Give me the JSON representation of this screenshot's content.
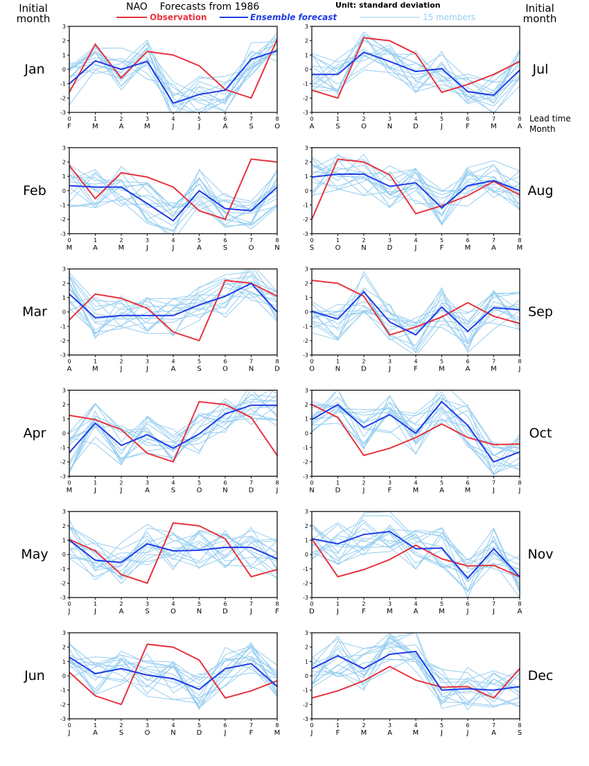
{
  "header": {
    "title": "NAO    Forecasts from 1986",
    "unit": "Unit: standard deviation",
    "left_label": [
      "Initial",
      "month"
    ],
    "right_label": [
      "Initial",
      "month"
    ],
    "lead_time_label": "Lead time",
    "month_label": "Month"
  },
  "legend": [
    {
      "name": "Observation",
      "color": "#e8323c"
    },
    {
      "name": "Ensemble forecast",
      "color": "#1e3ce6"
    },
    {
      "name": "15 members",
      "color": "#96cdf0"
    }
  ],
  "colors": {
    "observation": "#e8323c",
    "ensemble": "#1e3ce6",
    "members": "#96cdf0"
  },
  "chart_data": [
    {
      "type": "line",
      "initial_month": "Jan",
      "x": [
        0,
        1,
        2,
        3,
        4,
        5,
        6,
        7,
        8
      ],
      "month_ticks": [
        "F",
        "M",
        "A",
        "M",
        "J",
        "J",
        "A",
        "S",
        "O"
      ],
      "ylim": [
        -3,
        3
      ],
      "yticks": [
        -3,
        -2,
        -1,
        0,
        1,
        2,
        3
      ],
      "series": [
        {
          "name": "Observation",
          "values": [
            -1.6,
            1.75,
            -0.6,
            1.25,
            1.0,
            0.25,
            -1.4,
            -2.0,
            2.1
          ]
        },
        {
          "name": "Ensemble forecast",
          "values": [
            -1.0,
            0.6,
            0.0,
            0.55,
            -2.35,
            -1.75,
            -1.45,
            0.7,
            1.3
          ]
        }
      ]
    },
    {
      "type": "line",
      "initial_month": "Jul",
      "x": [
        0,
        1,
        2,
        3,
        4,
        5,
        6,
        7,
        8
      ],
      "month_ticks": [
        "A",
        "S",
        "O",
        "N",
        "D",
        "J",
        "F",
        "M",
        "A"
      ],
      "ylim": [
        -3,
        3
      ],
      "yticks": [
        -3,
        -2,
        -1,
        0,
        1,
        2,
        3
      ],
      "series": [
        {
          "name": "Observation",
          "values": [
            -1.45,
            -2.0,
            2.2,
            2.0,
            1.1,
            -1.6,
            -1.05,
            -0.35,
            0.55
          ]
        },
        {
          "name": "Ensemble forecast",
          "values": [
            -0.35,
            -0.35,
            1.2,
            0.55,
            -0.15,
            0.05,
            -1.55,
            -1.8,
            -0.05
          ]
        }
      ]
    },
    {
      "type": "line",
      "initial_month": "Feb",
      "x": [
        0,
        1,
        2,
        3,
        4,
        5,
        6,
        7,
        8
      ],
      "month_ticks": [
        "M",
        "A",
        "M",
        "J",
        "J",
        "A",
        "S",
        "O",
        "N"
      ],
      "ylim": [
        -3,
        3
      ],
      "yticks": [
        -3,
        -2,
        -1,
        0,
        1,
        2,
        3
      ],
      "series": [
        {
          "name": "Observation",
          "values": [
            1.75,
            -0.55,
            1.25,
            0.95,
            0.25,
            -1.4,
            -2.0,
            2.2,
            2.0
          ]
        },
        {
          "name": "Ensemble forecast",
          "values": [
            0.35,
            0.25,
            0.25,
            -0.9,
            -2.1,
            0.0,
            -1.25,
            -1.4,
            0.25
          ]
        }
      ]
    },
    {
      "type": "line",
      "initial_month": "Aug",
      "x": [
        0,
        1,
        2,
        3,
        4,
        5,
        6,
        7,
        8
      ],
      "month_ticks": [
        "S",
        "O",
        "N",
        "D",
        "J",
        "F",
        "M",
        "A",
        "M"
      ],
      "ylim": [
        -3,
        3
      ],
      "yticks": [
        -3,
        -2,
        -1,
        0,
        1,
        2,
        3
      ],
      "series": [
        {
          "name": "Observation",
          "values": [
            -2.0,
            2.2,
            2.0,
            1.1,
            -1.6,
            -1.05,
            -0.35,
            0.65,
            -0.3
          ]
        },
        {
          "name": "Ensemble forecast",
          "values": [
            0.95,
            1.15,
            1.15,
            0.3,
            0.55,
            -1.2,
            0.35,
            0.7,
            0.0
          ]
        }
      ]
    },
    {
      "type": "line",
      "initial_month": "Mar",
      "x": [
        0,
        1,
        2,
        3,
        4,
        5,
        6,
        7,
        8
      ],
      "month_ticks": [
        "A",
        "M",
        "J",
        "J",
        "A",
        "S",
        "O",
        "N",
        "D"
      ],
      "ylim": [
        -3,
        3
      ],
      "yticks": [
        -3,
        -2,
        -1,
        0,
        1,
        2,
        3
      ],
      "series": [
        {
          "name": "Observation",
          "values": [
            -0.55,
            1.25,
            0.95,
            0.25,
            -1.4,
            -2.0,
            2.2,
            2.0,
            1.1
          ]
        },
        {
          "name": "Ensemble forecast",
          "values": [
            1.25,
            -0.4,
            -0.25,
            -0.25,
            -0.25,
            0.5,
            1.1,
            2.0,
            0.0
          ]
        }
      ]
    },
    {
      "type": "line",
      "initial_month": "Sep",
      "x": [
        0,
        1,
        2,
        3,
        4,
        5,
        6,
        7,
        8
      ],
      "month_ticks": [
        "O",
        "N",
        "D",
        "J",
        "F",
        "M",
        "A",
        "M",
        "J"
      ],
      "ylim": [
        -3,
        3
      ],
      "yticks": [
        -3,
        -2,
        -1,
        0,
        1,
        2,
        3
      ],
      "series": [
        {
          "name": "Observation",
          "values": [
            2.2,
            2.0,
            1.1,
            -1.6,
            -1.05,
            -0.35,
            0.65,
            -0.3,
            -0.8
          ]
        },
        {
          "name": "Ensemble forecast",
          "values": [
            0.05,
            -0.5,
            1.4,
            -0.7,
            -1.6,
            0.35,
            -1.35,
            0.3,
            0.15
          ]
        }
      ]
    },
    {
      "type": "line",
      "initial_month": "Apr",
      "x": [
        0,
        1,
        2,
        3,
        4,
        5,
        6,
        7,
        8
      ],
      "month_ticks": [
        "M",
        "J",
        "J",
        "A",
        "S",
        "O",
        "N",
        "D",
        "J"
      ],
      "ylim": [
        -3,
        3
      ],
      "yticks": [
        -3,
        -2,
        -1,
        0,
        1,
        2,
        3
      ],
      "series": [
        {
          "name": "Observation",
          "values": [
            1.25,
            0.95,
            0.25,
            -1.4,
            -2.0,
            2.2,
            2.0,
            1.1,
            -1.55
          ]
        },
        {
          "name": "Ensemble forecast",
          "values": [
            -1.35,
            0.7,
            -0.85,
            -0.1,
            -1.05,
            -0.05,
            1.35,
            1.95,
            1.95
          ]
        }
      ]
    },
    {
      "type": "line",
      "initial_month": "Oct",
      "x": [
        0,
        1,
        2,
        3,
        4,
        5,
        6,
        7,
        8
      ],
      "month_ticks": [
        "N",
        "D",
        "J",
        "F",
        "M",
        "A",
        "M",
        "J",
        "J"
      ],
      "ylim": [
        -3,
        3
      ],
      "yticks": [
        -3,
        -2,
        -1,
        0,
        1,
        2,
        3
      ],
      "series": [
        {
          "name": "Observation",
          "values": [
            2.0,
            1.1,
            -1.55,
            -1.05,
            -0.3,
            0.65,
            -0.3,
            -0.8,
            -0.75
          ]
        },
        {
          "name": "Ensemble forecast",
          "values": [
            0.95,
            2.0,
            0.4,
            1.3,
            0.0,
            2.2,
            0.55,
            -2.0,
            -1.3
          ]
        }
      ]
    },
    {
      "type": "line",
      "initial_month": "May",
      "x": [
        0,
        1,
        2,
        3,
        4,
        5,
        6,
        7,
        8
      ],
      "month_ticks": [
        "J",
        "J",
        "A",
        "S",
        "O",
        "N",
        "D",
        "J",
        "F"
      ],
      "ylim": [
        -3,
        3
      ],
      "yticks": [
        -3,
        -2,
        -1,
        0,
        1,
        2,
        3
      ],
      "series": [
        {
          "name": "Observation",
          "values": [
            1.05,
            0.25,
            -1.4,
            -2.0,
            2.2,
            2.0,
            1.1,
            -1.55,
            -1.05
          ]
        },
        {
          "name": "Ensemble forecast",
          "values": [
            1.0,
            -0.4,
            -0.55,
            0.75,
            0.25,
            0.3,
            0.5,
            0.5,
            -0.3
          ]
        }
      ]
    },
    {
      "type": "line",
      "initial_month": "Nov",
      "x": [
        0,
        1,
        2,
        3,
        4,
        5,
        6,
        7,
        8
      ],
      "month_ticks": [
        "D",
        "J",
        "F",
        "M",
        "A",
        "M",
        "J",
        "J",
        "A"
      ],
      "ylim": [
        -3,
        3
      ],
      "yticks": [
        -3,
        -2,
        -1,
        0,
        1,
        2,
        3
      ],
      "series": [
        {
          "name": "Observation",
          "values": [
            1.1,
            -1.55,
            -1.05,
            -0.35,
            0.65,
            -0.3,
            -0.8,
            -0.75,
            -1.55
          ]
        },
        {
          "name": "Ensemble forecast",
          "values": [
            1.1,
            0.75,
            1.4,
            1.6,
            0.4,
            0.45,
            -1.65,
            0.4,
            -1.55
          ]
        }
      ]
    },
    {
      "type": "line",
      "initial_month": "Jun",
      "x": [
        0,
        1,
        2,
        3,
        4,
        5,
        6,
        7,
        8
      ],
      "month_ticks": [
        "J",
        "A",
        "S",
        "O",
        "N",
        "D",
        "J",
        "F",
        "M"
      ],
      "ylim": [
        -3,
        3
      ],
      "yticks": [
        -3,
        -2,
        -1,
        0,
        1,
        2,
        3
      ],
      "series": [
        {
          "name": "Observation",
          "values": [
            0.25,
            -1.4,
            -2.0,
            2.2,
            2.0,
            1.1,
            -1.55,
            -1.05,
            -0.35
          ]
        },
        {
          "name": "Ensemble forecast",
          "values": [
            1.3,
            0.15,
            0.5,
            0.05,
            -0.2,
            -0.95,
            0.5,
            0.85,
            -0.75
          ]
        }
      ]
    },
    {
      "type": "line",
      "initial_month": "Dec",
      "x": [
        0,
        1,
        2,
        3,
        4,
        5,
        6,
        7,
        8
      ],
      "month_ticks": [
        "J",
        "F",
        "M",
        "A",
        "M",
        "J",
        "J",
        "A",
        "S"
      ],
      "ylim": [
        -3,
        3
      ],
      "yticks": [
        -3,
        -2,
        -1,
        0,
        1,
        2,
        3
      ],
      "series": [
        {
          "name": "Observation",
          "values": [
            -1.55,
            -1.05,
            -0.35,
            0.65,
            -0.3,
            -0.8,
            -0.75,
            -1.55,
            0.5
          ]
        },
        {
          "name": "Ensemble forecast",
          "values": [
            0.5,
            1.4,
            0.5,
            1.5,
            1.7,
            -1.0,
            -0.9,
            -1.0,
            -0.75
          ]
        }
      ]
    }
  ]
}
